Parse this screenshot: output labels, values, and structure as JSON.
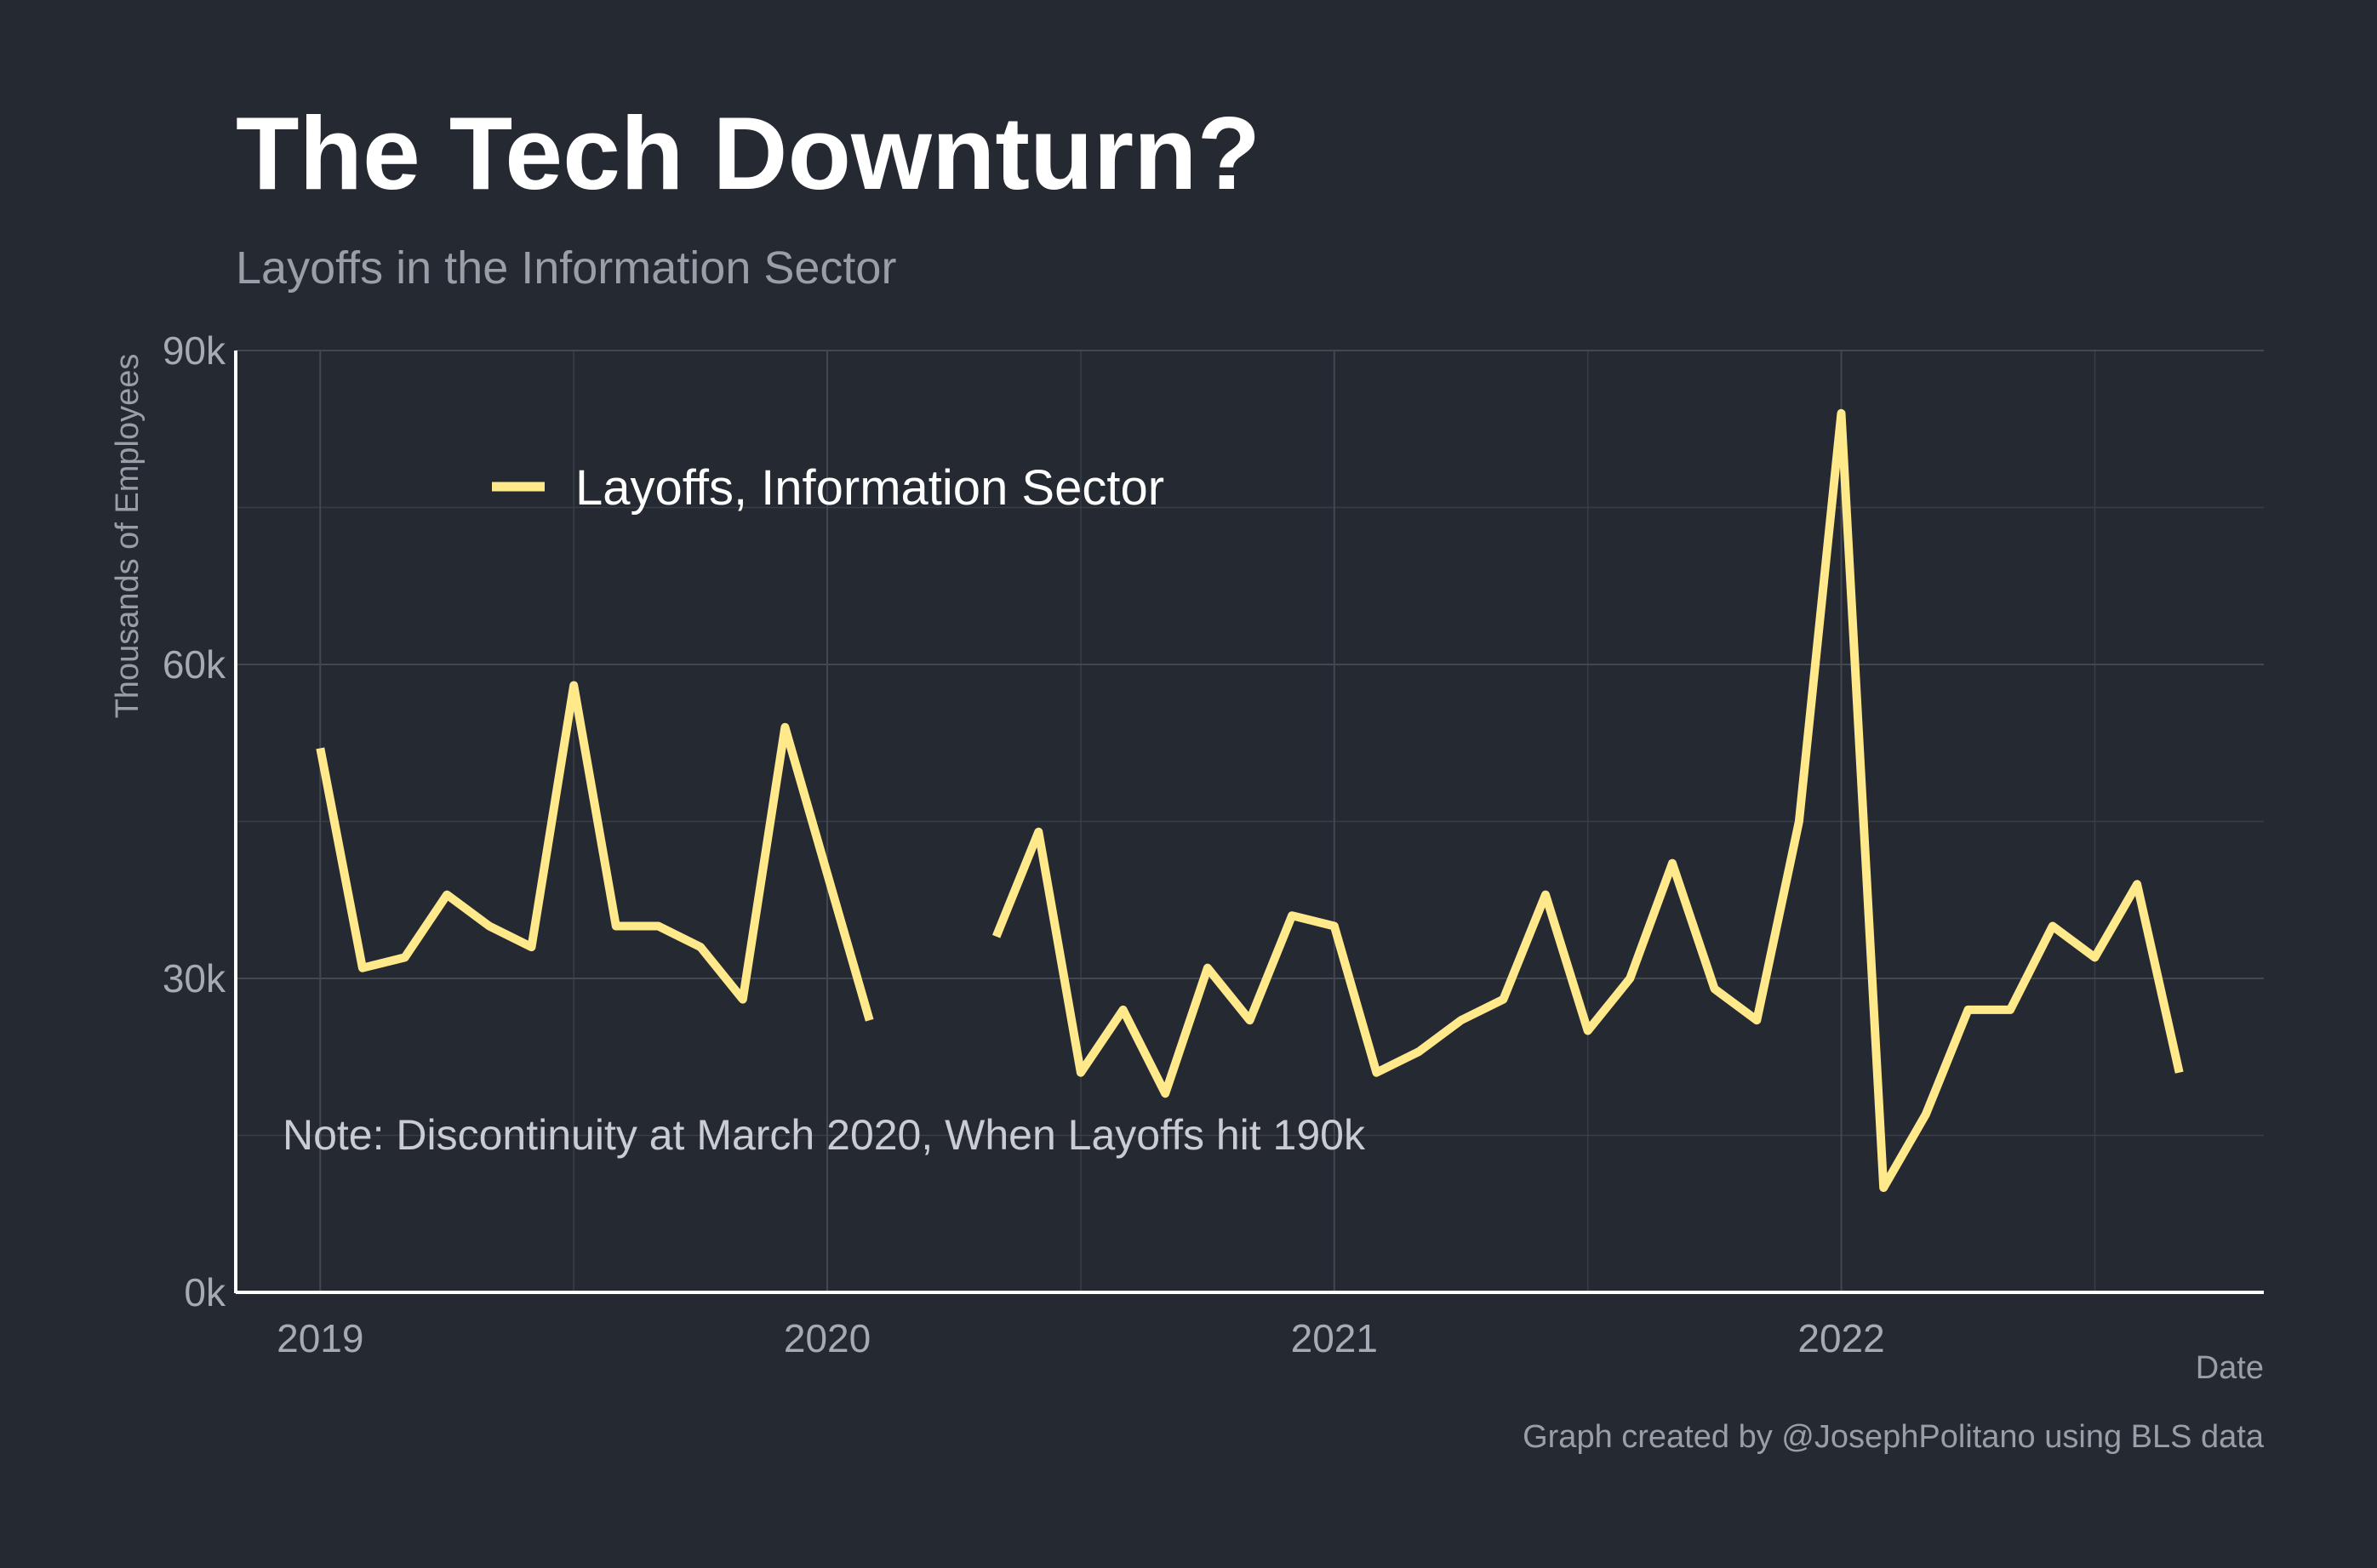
{
  "chart_data": {
    "type": "line",
    "title": "The Tech Downturn?",
    "subtitle": "Layoffs in the Information Sector",
    "xlabel": "Date",
    "ylabel": "Thousands of Employees",
    "ylim": [
      0,
      90000
    ],
    "y_ticks": [
      {
        "value": 0,
        "label": "0k"
      },
      {
        "value": 30000,
        "label": "30k"
      },
      {
        "value": 60000,
        "label": "60k"
      },
      {
        "value": 90000,
        "label": "90k"
      }
    ],
    "xlim": [
      "2018-11-01",
      "2022-11-01"
    ],
    "x_ticks": [
      {
        "value": "2019-01",
        "label": "2019"
      },
      {
        "value": "2020-01",
        "label": "2020"
      },
      {
        "value": "2021-01",
        "label": "2021"
      },
      {
        "value": "2022-01",
        "label": "2022"
      }
    ],
    "grid": true,
    "legend_position": "top-left",
    "series": [
      {
        "name": "Layoffs, Information Sector",
        "color": "#ffe98a",
        "points": [
          {
            "x": "2019-01",
            "y": 52000
          },
          {
            "x": "2019-02",
            "y": 31000
          },
          {
            "x": "2019-03",
            "y": 32000
          },
          {
            "x": "2019-04",
            "y": 38000
          },
          {
            "x": "2019-05",
            "y": 35000
          },
          {
            "x": "2019-06",
            "y": 33000
          },
          {
            "x": "2019-07",
            "y": 58000
          },
          {
            "x": "2019-08",
            "y": 35000
          },
          {
            "x": "2019-09",
            "y": 35000
          },
          {
            "x": "2019-10",
            "y": 33000
          },
          {
            "x": "2019-11",
            "y": 28000
          },
          {
            "x": "2019-12",
            "y": 54000
          },
          {
            "x": "2020-01",
            "y": 40000
          },
          {
            "x": "2020-02",
            "y": 26000
          },
          {
            "x": "2020-03",
            "y": null
          },
          {
            "x": "2020-04",
            "y": null
          },
          {
            "x": "2020-05",
            "y": 34000
          },
          {
            "x": "2020-06",
            "y": 44000
          },
          {
            "x": "2020-07",
            "y": 21000
          },
          {
            "x": "2020-08",
            "y": 27000
          },
          {
            "x": "2020-09",
            "y": 19000
          },
          {
            "x": "2020-10",
            "y": 31000
          },
          {
            "x": "2020-11",
            "y": 26000
          },
          {
            "x": "2020-12",
            "y": 36000
          },
          {
            "x": "2021-01",
            "y": 35000
          },
          {
            "x": "2021-02",
            "y": 21000
          },
          {
            "x": "2021-03",
            "y": 23000
          },
          {
            "x": "2021-04",
            "y": 26000
          },
          {
            "x": "2021-05",
            "y": 28000
          },
          {
            "x": "2021-06",
            "y": 38000
          },
          {
            "x": "2021-07",
            "y": 25000
          },
          {
            "x": "2021-08",
            "y": 30000
          },
          {
            "x": "2021-09",
            "y": 41000
          },
          {
            "x": "2021-10",
            "y": 29000
          },
          {
            "x": "2021-11",
            "y": 26000
          },
          {
            "x": "2021-12",
            "y": 45000
          },
          {
            "x": "2022-01",
            "y": 84000
          },
          {
            "x": "2022-02",
            "y": 10000
          },
          {
            "x": "2022-03",
            "y": 17000
          },
          {
            "x": "2022-04",
            "y": 27000
          },
          {
            "x": "2022-05",
            "y": 27000
          },
          {
            "x": "2022-06",
            "y": 35000
          },
          {
            "x": "2022-07",
            "y": 32000
          },
          {
            "x": "2022-08",
            "y": 39000
          },
          {
            "x": "2022-09",
            "y": 21000
          }
        ]
      }
    ],
    "annotations": [
      {
        "text": "Note: Discontinuity at March 2020, When Layoffs hit 190k"
      }
    ],
    "caption": "Graph created by @JosephPolitano using BLS data"
  }
}
